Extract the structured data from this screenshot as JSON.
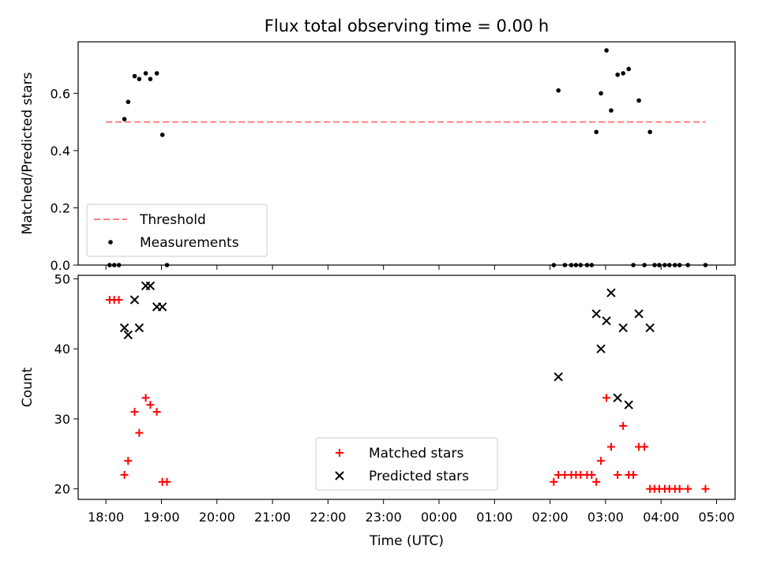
{
  "title": "Flux total observing time = 0.00 h",
  "xlabel": "Time (UTC)",
  "colors": {
    "threshold": "#ff7f7f",
    "measurement": "#000000",
    "matched": "#ff0000",
    "predicted": "#000000"
  },
  "chart_data": [
    {
      "type": "scatter",
      "panel": "top",
      "title": "Flux total observing time = 0.00 h",
      "xlabel": "",
      "ylabel": "Matched/Predicted stars",
      "x_axis": "time_utc",
      "xlim": [
        "18:00",
        "05:00"
      ],
      "ylim": [
        0.0,
        0.78
      ],
      "yticks": [
        0.0,
        0.2,
        0.4,
        0.6
      ],
      "ytick_labels": [
        "0.0",
        "0.2",
        "0.4",
        "0.6"
      ],
      "legend": {
        "position": "lower-left",
        "entries": [
          "Threshold",
          "Measurements"
        ]
      },
      "threshold": {
        "name": "Threshold",
        "value": 0.5,
        "x_range": [
          "18:00",
          "04:48"
        ],
        "style": "dashed"
      },
      "series": [
        {
          "name": "Measurements",
          "x": [
            "18:04",
            "18:09",
            "18:14",
            "18:20",
            "18:24",
            "18:31",
            "18:36",
            "18:43",
            "18:48",
            "18:55",
            "19:01",
            "19:06",
            "02:04",
            "02:09",
            "02:16",
            "02:23",
            "02:28",
            "02:33",
            "02:40",
            "02:45",
            "02:50",
            "02:55",
            "03:01",
            "03:06",
            "03:13",
            "03:19",
            "03:25",
            "03:30",
            "03:36",
            "03:42",
            "03:48",
            "03:53",
            "03:58",
            "04:04",
            "04:09",
            "04:15",
            "04:20",
            "04:29",
            "04:48"
          ],
          "y": [
            0.0,
            0.0,
            0.0,
            0.51,
            0.57,
            0.66,
            0.65,
            0.67,
            0.65,
            0.67,
            0.455,
            0.0,
            0.0,
            0.61,
            0.0,
            0.0,
            0.0,
            0.0,
            0.0,
            0.0,
            0.465,
            0.6,
            0.75,
            0.54,
            0.665,
            0.67,
            0.685,
            0.0,
            0.575,
            0.0,
            0.465,
            0.0,
            0.0,
            0.0,
            0.0,
            0.0,
            0.0,
            0.0,
            0.0
          ]
        }
      ]
    },
    {
      "type": "scatter",
      "panel": "bottom",
      "xlabel": "Time (UTC)",
      "ylabel": "Count",
      "x_axis": "time_utc",
      "xlim": [
        "18:00",
        "05:00"
      ],
      "ylim": [
        18.5,
        50.5
      ],
      "yticks": [
        20,
        30,
        40,
        50
      ],
      "ytick_labels": [
        "20",
        "30",
        "40",
        "50"
      ],
      "xticks": [
        "18:00",
        "19:00",
        "20:00",
        "21:00",
        "22:00",
        "23:00",
        "00:00",
        "01:00",
        "02:00",
        "03:00",
        "04:00",
        "05:00"
      ],
      "legend": {
        "position": "lower-center",
        "entries": [
          "Matched stars",
          "Predicted stars"
        ]
      },
      "series": [
        {
          "name": "Matched stars",
          "marker": "plus",
          "x": [
            "18:04",
            "18:09",
            "18:14",
            "18:20",
            "18:24",
            "18:31",
            "18:36",
            "18:43",
            "18:48",
            "18:55",
            "19:01",
            "19:06",
            "02:04",
            "02:09",
            "02:16",
            "02:23",
            "02:28",
            "02:33",
            "02:40",
            "02:45",
            "02:50",
            "02:55",
            "03:01",
            "03:06",
            "03:13",
            "03:19",
            "03:25",
            "03:30",
            "03:36",
            "03:42",
            "03:48",
            "03:53",
            "03:58",
            "04:04",
            "04:09",
            "04:15",
            "04:20",
            "04:29",
            "04:48"
          ],
          "y": [
            47,
            47,
            47,
            22,
            24,
            31,
            28,
            33,
            32,
            31,
            21,
            21,
            21,
            22,
            22,
            22,
            22,
            22,
            22,
            22,
            21,
            24,
            33,
            26,
            22,
            29,
            22,
            22,
            26,
            26,
            20,
            20,
            20,
            20,
            20,
            20,
            20,
            20,
            20
          ]
        },
        {
          "name": "Predicted stars",
          "marker": "x",
          "x": [
            "18:20",
            "18:24",
            "18:31",
            "18:36",
            "18:43",
            "18:48",
            "18:55",
            "19:01",
            "02:09",
            "02:50",
            "02:55",
            "03:01",
            "03:06",
            "03:13",
            "03:19",
            "03:25",
            "03:36",
            "03:48"
          ],
          "y": [
            43,
            42,
            47,
            43,
            49,
            49,
            46,
            46,
            36,
            45,
            40,
            44,
            48,
            33,
            43,
            32,
            45,
            43
          ]
        }
      ]
    }
  ]
}
